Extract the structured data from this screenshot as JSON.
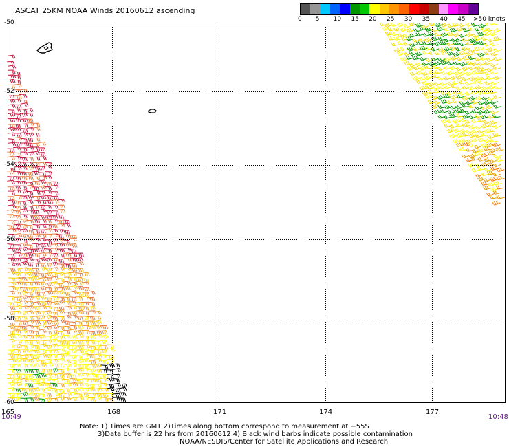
{
  "title": "ASCAT 25KM NOAA Winds 20160612 ascending",
  "legend": {
    "colors": [
      "#545454",
      "#969696",
      "#00c8ff",
      "#0064ff",
      "#0000ff",
      "#009600",
      "#00c800",
      "#ffff00",
      "#ffc800",
      "#ff9600",
      "#ff6400",
      "#ff0000",
      "#c80000",
      "#8c3c14",
      "#ff96ff",
      "#ff00ff",
      "#c800c8",
      "#640096"
    ],
    "ticks": [
      "0",
      "5",
      "10",
      "15",
      "20",
      "25",
      "30",
      "35",
      "40",
      "45",
      ">50 knots"
    ]
  },
  "axes": {
    "lon_labels": [
      "165",
      "168",
      "171",
      "174",
      "177"
    ],
    "lat_labels": [
      "-50",
      "-52",
      "-54",
      "-56",
      "-58",
      "-60"
    ]
  },
  "times": {
    "left": "10:49",
    "right": "10:48"
  },
  "notes": {
    "line1": "Note: 1) Times are GMT 2)Times along bottom correspond to measurement at −55S",
    "line2": "3)Data buffer is 22 hrs from 20160612 4) Black wind barbs indicate possible contamination",
    "line3": "NOAA/NESDIS/Center for Satellite Applications and Research"
  },
  "wind_colors": {
    "left_swath": [
      "#c8143c",
      "#d22850",
      "#e6783c",
      "#f0a01e",
      "#ffd200",
      "#ffff00"
    ],
    "right_swath": [
      "#ffff00",
      "#f5dc00",
      "#009600",
      "#e6a000",
      "#ff7800"
    ],
    "contaminated": "#000000"
  }
}
